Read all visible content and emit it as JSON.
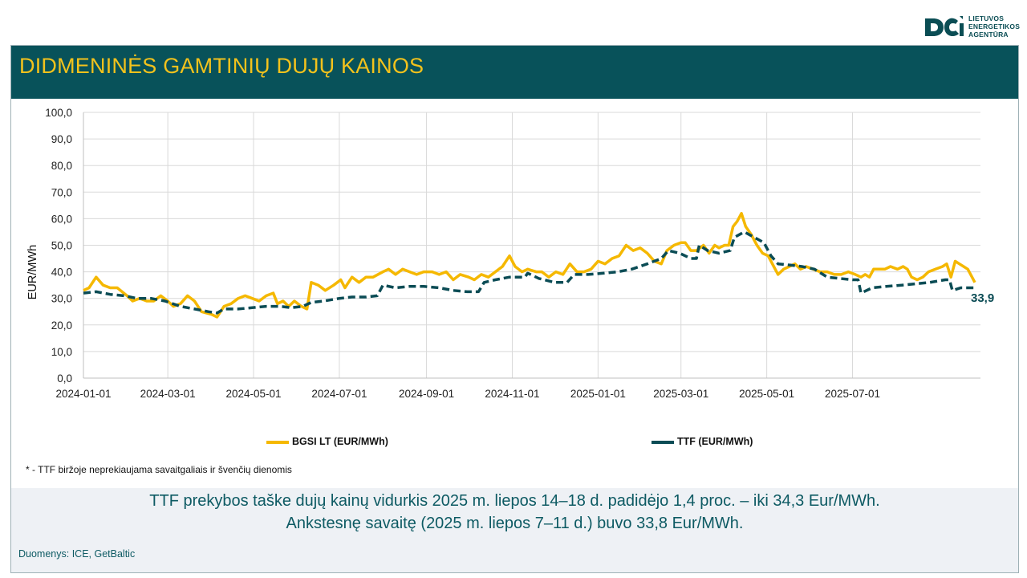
{
  "logo": {
    "line1": "LIETUVOS",
    "line2": "ENERGETIKOS",
    "line3": "AGENTŪRA"
  },
  "header": {
    "title": "DIDMENINĖS GAMTINIŲ DUJŲ KAINOS"
  },
  "chart_data": {
    "type": "line",
    "ylabel": "EUR/MWh",
    "xlabel": "",
    "ylim": [
      0,
      100
    ],
    "y_ticks": [
      "0,0",
      "10,0",
      "20,0",
      "30,0",
      "40,0",
      "50,0",
      "60,0",
      "70,0",
      "80,0",
      "90,0",
      "100,0"
    ],
    "x_ticks": [
      "2024-01-01",
      "2024-03-01",
      "2024-05-01",
      "2024-07-01",
      "2024-09-01",
      "2024-11-01",
      "2025-01-01",
      "2025-03-01",
      "2025-05-01",
      "2025-07-01"
    ],
    "grid": true,
    "legend_position": "bottom",
    "last_value_label": "33,9",
    "series": [
      {
        "name": "BGSI LT (EUR/MWh)",
        "color": "#f5b800",
        "style": "solid",
        "points": [
          [
            "2024-01-01",
            33
          ],
          [
            "2024-01-05",
            34
          ],
          [
            "2024-01-10",
            38
          ],
          [
            "2024-01-15",
            35
          ],
          [
            "2024-01-20",
            34
          ],
          [
            "2024-01-25",
            34
          ],
          [
            "2024-02-01",
            31
          ],
          [
            "2024-02-05",
            29
          ],
          [
            "2024-02-10",
            30
          ],
          [
            "2024-02-15",
            29
          ],
          [
            "2024-02-20",
            29
          ],
          [
            "2024-02-25",
            31
          ],
          [
            "2024-03-01",
            29
          ],
          [
            "2024-03-05",
            27
          ],
          [
            "2024-03-10",
            28
          ],
          [
            "2024-03-15",
            31
          ],
          [
            "2024-03-20",
            29
          ],
          [
            "2024-03-25",
            25
          ],
          [
            "2024-04-01",
            24
          ],
          [
            "2024-04-05",
            23
          ],
          [
            "2024-04-10",
            27
          ],
          [
            "2024-04-15",
            28
          ],
          [
            "2024-04-20",
            30
          ],
          [
            "2024-04-25",
            31
          ],
          [
            "2024-04-30",
            30
          ],
          [
            "2024-05-05",
            29
          ],
          [
            "2024-05-10",
            31
          ],
          [
            "2024-05-15",
            32
          ],
          [
            "2024-05-18",
            28
          ],
          [
            "2024-05-22",
            29
          ],
          [
            "2024-05-26",
            27
          ],
          [
            "2024-05-30",
            29
          ],
          [
            "2024-06-04",
            27
          ],
          [
            "2024-06-08",
            26
          ],
          [
            "2024-06-11",
            36
          ],
          [
            "2024-06-16",
            35
          ],
          [
            "2024-06-21",
            33
          ],
          [
            "2024-06-27",
            35
          ],
          [
            "2024-07-02",
            37
          ],
          [
            "2024-07-05",
            34
          ],
          [
            "2024-07-10",
            38
          ],
          [
            "2024-07-15",
            36
          ],
          [
            "2024-07-20",
            38
          ],
          [
            "2024-07-25",
            38
          ],
          [
            "2024-08-01",
            40
          ],
          [
            "2024-08-05",
            41
          ],
          [
            "2024-08-10",
            39
          ],
          [
            "2024-08-15",
            41
          ],
          [
            "2024-08-20",
            40
          ],
          [
            "2024-08-25",
            39
          ],
          [
            "2024-08-30",
            40
          ],
          [
            "2024-09-05",
            40
          ],
          [
            "2024-09-10",
            39
          ],
          [
            "2024-09-15",
            40
          ],
          [
            "2024-09-20",
            37
          ],
          [
            "2024-09-25",
            39
          ],
          [
            "2024-10-01",
            38
          ],
          [
            "2024-10-05",
            37
          ],
          [
            "2024-10-10",
            39
          ],
          [
            "2024-10-15",
            38
          ],
          [
            "2024-10-20",
            40
          ],
          [
            "2024-10-25",
            42
          ],
          [
            "2024-10-30",
            46
          ],
          [
            "2024-11-03",
            42
          ],
          [
            "2024-11-08",
            40
          ],
          [
            "2024-11-12",
            41
          ],
          [
            "2024-11-18",
            40
          ],
          [
            "2024-11-22",
            40
          ],
          [
            "2024-11-27",
            38
          ],
          [
            "2024-12-02",
            40
          ],
          [
            "2024-12-07",
            39
          ],
          [
            "2024-12-12",
            43
          ],
          [
            "2024-12-17",
            40
          ],
          [
            "2024-12-22",
            40
          ],
          [
            "2024-12-27",
            41
          ],
          [
            "2025-01-01",
            44
          ],
          [
            "2025-01-06",
            43
          ],
          [
            "2025-01-11",
            45
          ],
          [
            "2025-01-16",
            46
          ],
          [
            "2025-01-21",
            50
          ],
          [
            "2025-01-26",
            48
          ],
          [
            "2025-01-31",
            49
          ],
          [
            "2025-02-05",
            47
          ],
          [
            "2025-02-10",
            44
          ],
          [
            "2025-02-15",
            43
          ],
          [
            "2025-02-19",
            48
          ],
          [
            "2025-02-24",
            50
          ],
          [
            "2025-03-01",
            51
          ],
          [
            "2025-03-04",
            51
          ],
          [
            "2025-03-08",
            48
          ],
          [
            "2025-03-12",
            48
          ],
          [
            "2025-03-17",
            50
          ],
          [
            "2025-03-21",
            47
          ],
          [
            "2025-03-25",
            50
          ],
          [
            "2025-03-28",
            49
          ],
          [
            "2025-04-01",
            50
          ],
          [
            "2025-04-04",
            50
          ],
          [
            "2025-04-07",
            57
          ],
          [
            "2025-04-10",
            59
          ],
          [
            "2025-04-13",
            62
          ],
          [
            "2025-04-16",
            57
          ],
          [
            "2025-04-20",
            54
          ],
          [
            "2025-04-24",
            50
          ],
          [
            "2025-04-28",
            47
          ],
          [
            "2025-05-02",
            46
          ],
          [
            "2025-05-06",
            42
          ],
          [
            "2025-05-09",
            39
          ],
          [
            "2025-05-13",
            41
          ],
          [
            "2025-05-17",
            42
          ],
          [
            "2025-05-21",
            43
          ],
          [
            "2025-05-25",
            41
          ],
          [
            "2025-05-29",
            42
          ],
          [
            "2025-06-03",
            41
          ],
          [
            "2025-06-08",
            40
          ],
          [
            "2025-06-13",
            40
          ],
          [
            "2025-06-18",
            39
          ],
          [
            "2025-06-23",
            39
          ],
          [
            "2025-06-28",
            40
          ],
          [
            "2025-07-03",
            39
          ],
          [
            "2025-07-07",
            38
          ],
          [
            "2025-07-10",
            39
          ],
          [
            "2025-07-13",
            38
          ],
          [
            "2025-07-16",
            41
          ],
          [
            "2025-07-20",
            41
          ],
          [
            "2025-07-24",
            41
          ],
          [
            "2025-07-28",
            42
          ],
          [
            "2025-08-02",
            41
          ],
          [
            "2025-08-06",
            42
          ],
          [
            "2025-08-09",
            41
          ],
          [
            "2025-08-12",
            38
          ],
          [
            "2025-08-16",
            37
          ],
          [
            "2025-08-20",
            38
          ],
          [
            "2025-08-24",
            40
          ],
          [
            "2025-08-29",
            41
          ],
          [
            "2025-09-03",
            42
          ],
          [
            "2025-09-06",
            43
          ],
          [
            "2025-09-09",
            38
          ],
          [
            "2025-09-12",
            44
          ],
          [
            "2025-09-15",
            43
          ],
          [
            "2025-09-18",
            42
          ],
          [
            "2025-09-21",
            41
          ],
          [
            "2025-09-24",
            38
          ],
          [
            "2025-09-26",
            36
          ]
        ]
      },
      {
        "name": "TTF (EUR/MWh)",
        "color": "#0b4c55",
        "style": "dashed",
        "points": [
          [
            "2024-01-01",
            32
          ],
          [
            "2024-01-10",
            32.5
          ],
          [
            "2024-01-20",
            31.5
          ],
          [
            "2024-01-30",
            31
          ],
          [
            "2024-02-08",
            30
          ],
          [
            "2024-02-18",
            30
          ],
          [
            "2024-02-28",
            29
          ],
          [
            "2024-03-10",
            27
          ],
          [
            "2024-03-20",
            26
          ],
          [
            "2024-03-30",
            25
          ],
          [
            "2024-04-05",
            24.5
          ],
          [
            "2024-04-10",
            26
          ],
          [
            "2024-04-20",
            26
          ],
          [
            "2024-04-30",
            26.5
          ],
          [
            "2024-05-10",
            27
          ],
          [
            "2024-05-20",
            27
          ],
          [
            "2024-05-28",
            26.5
          ],
          [
            "2024-06-05",
            27
          ],
          [
            "2024-06-11",
            28.5
          ],
          [
            "2024-06-20",
            29
          ],
          [
            "2024-07-01",
            30
          ],
          [
            "2024-07-10",
            30.5
          ],
          [
            "2024-07-20",
            30.5
          ],
          [
            "2024-07-28",
            31
          ],
          [
            "2024-08-01",
            35
          ],
          [
            "2024-08-10",
            34
          ],
          [
            "2024-08-20",
            34.5
          ],
          [
            "2024-08-30",
            34.5
          ],
          [
            "2024-09-10",
            34
          ],
          [
            "2024-09-20",
            33
          ],
          [
            "2024-09-30",
            32.5
          ],
          [
            "2024-10-08",
            32.5
          ],
          [
            "2024-10-12",
            36
          ],
          [
            "2024-10-20",
            37
          ],
          [
            "2024-10-30",
            38
          ],
          [
            "2024-11-05",
            38
          ],
          [
            "2024-11-10",
            38
          ],
          [
            "2024-11-12",
            39.5
          ],
          [
            "2024-11-20",
            37.5
          ],
          [
            "2024-12-01",
            36
          ],
          [
            "2024-12-10",
            36
          ],
          [
            "2024-12-15",
            39
          ],
          [
            "2024-12-25",
            39
          ],
          [
            "2025-01-05",
            39.5
          ],
          [
            "2025-01-15",
            40
          ],
          [
            "2025-01-25",
            41
          ],
          [
            "2025-02-05",
            43
          ],
          [
            "2025-02-15",
            45
          ],
          [
            "2025-02-20",
            48
          ],
          [
            "2025-02-28",
            47
          ],
          [
            "2025-03-08",
            45
          ],
          [
            "2025-03-12",
            45
          ],
          [
            "2025-03-14",
            50
          ],
          [
            "2025-03-20",
            48
          ],
          [
            "2025-03-28",
            47
          ],
          [
            "2025-04-05",
            48
          ],
          [
            "2025-04-08",
            53
          ],
          [
            "2025-04-15",
            55
          ],
          [
            "2025-04-22",
            53
          ],
          [
            "2025-04-29",
            51
          ],
          [
            "2025-05-04",
            46
          ],
          [
            "2025-05-09",
            43
          ],
          [
            "2025-05-18",
            42.5
          ],
          [
            "2025-05-26",
            42
          ],
          [
            "2025-06-04",
            41
          ],
          [
            "2025-06-13",
            38
          ],
          [
            "2025-06-22",
            37.5
          ],
          [
            "2025-07-01",
            37
          ],
          [
            "2025-07-05",
            37
          ],
          [
            "2025-07-07",
            32
          ],
          [
            "2025-07-15",
            34
          ],
          [
            "2025-07-25",
            34.5
          ],
          [
            "2025-08-05",
            35
          ],
          [
            "2025-08-15",
            35.5
          ],
          [
            "2025-08-25",
            36
          ],
          [
            "2025-09-05",
            37
          ],
          [
            "2025-09-08",
            37
          ],
          [
            "2025-09-10",
            33
          ],
          [
            "2025-09-16",
            34
          ],
          [
            "2025-09-26",
            34
          ]
        ]
      }
    ]
  },
  "footnote": "* - TTF biržoje neprekiaujama savaitgaliais ir švenčių dienomis",
  "summary": {
    "line1": "TTF prekybos taške dujų kainų vidurkis 2025 m. liepos 14–18 d. padidėjo 1,4 proc. – iki 34,3 Eur/MWh.",
    "line2": "Ankstesnę savaitę (2025 m. liepos 7–11 d.) buvo 33,8 Eur/MWh."
  },
  "source": "Duomenys: ICE, GetBaltic"
}
